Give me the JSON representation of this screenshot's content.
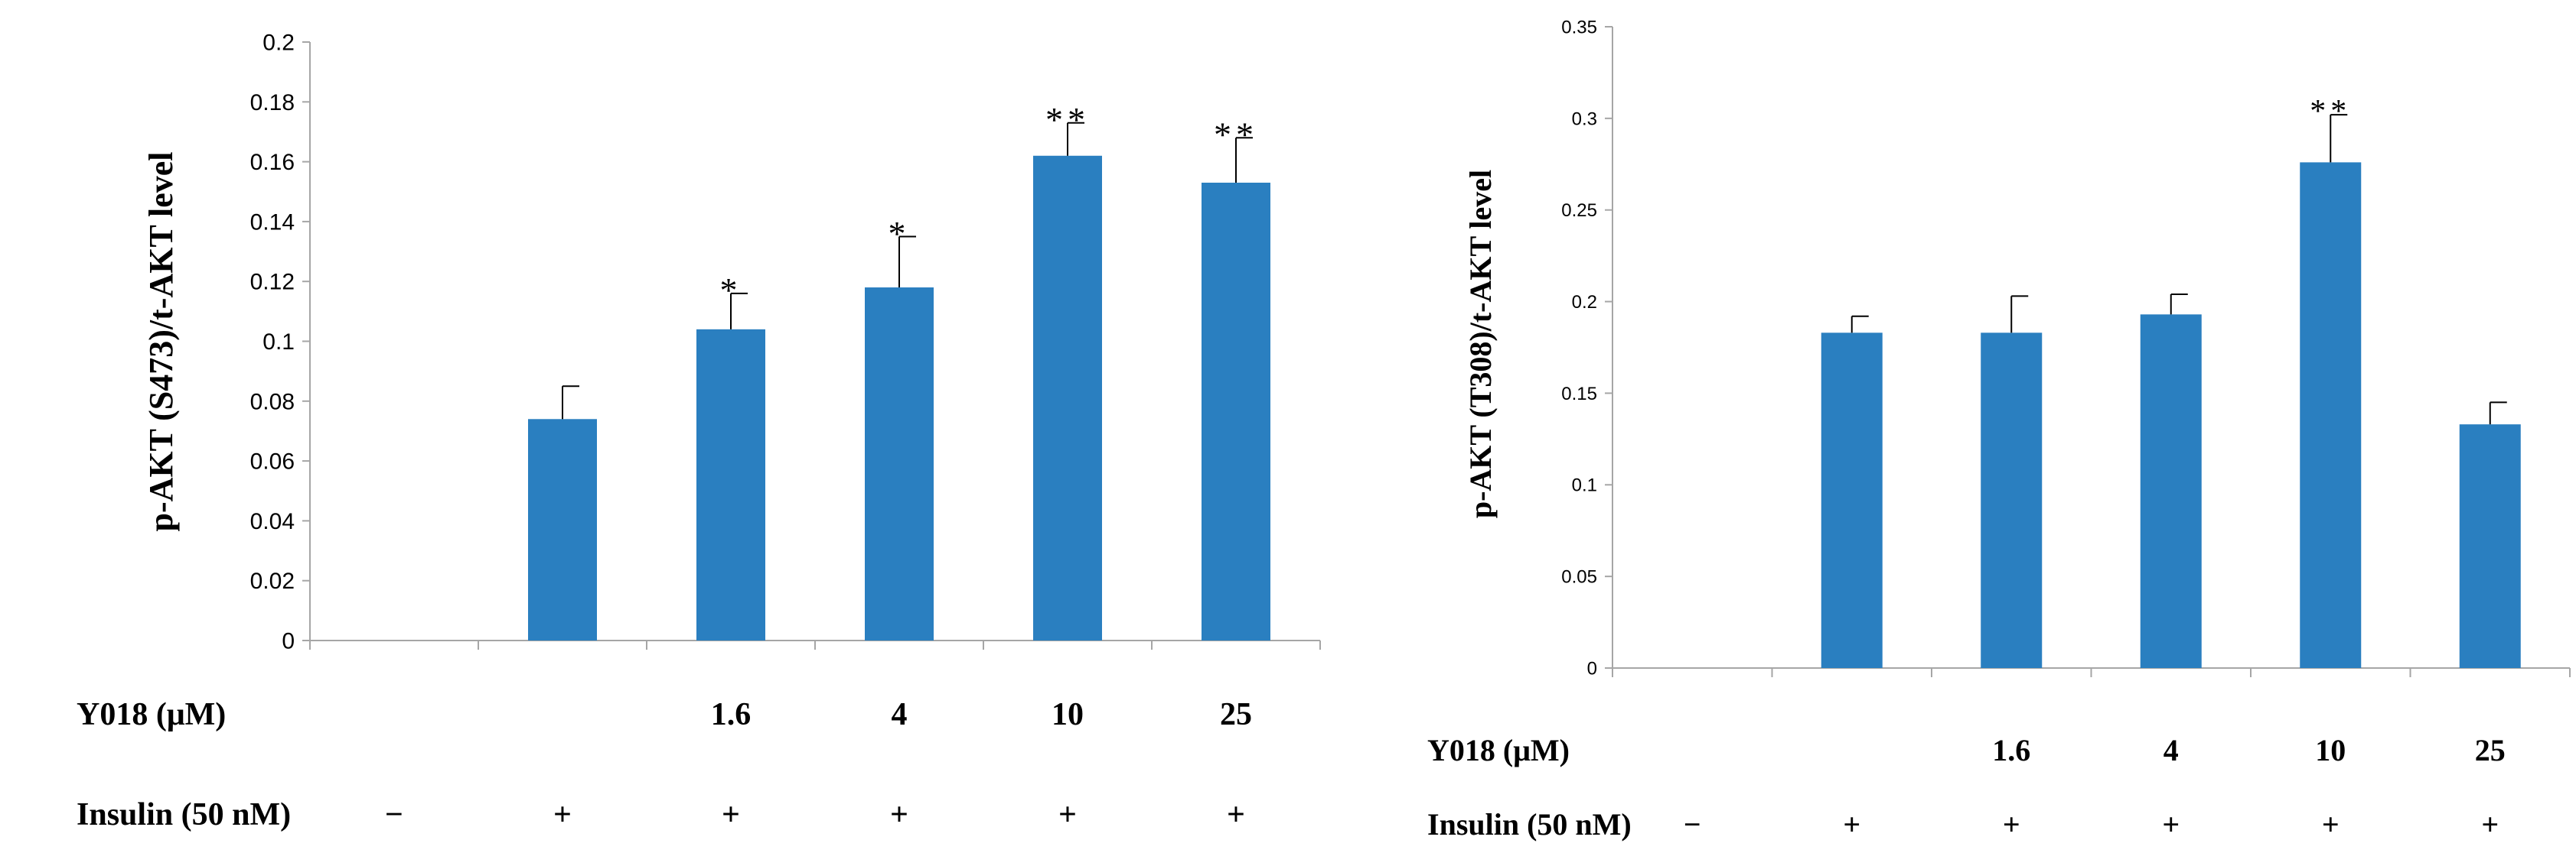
{
  "chart_data": [
    {
      "type": "bar",
      "ylabel": "p-AKT (S473)/t-AKT level",
      "ylim": [
        0,
        0.2
      ],
      "yticks": [
        "0",
        "0.02",
        "0.04",
        "0.06",
        "0.08",
        "0.1",
        "0.12",
        "0.14",
        "0.16",
        "0.18",
        "0.2"
      ],
      "yticks_values": [
        0,
        0.02,
        0.04,
        0.06,
        0.08,
        0.1,
        0.12,
        0.14,
        0.16,
        0.18,
        0.2
      ],
      "values": [
        0,
        0.074,
        0.104,
        0.118,
        0.162,
        0.153
      ],
      "errors": [
        0,
        0.011,
        0.012,
        0.017,
        0.011,
        0.015
      ],
      "significance": [
        "",
        "",
        "*",
        "*",
        "**",
        "**"
      ],
      "bar_color": "#2a7fc0",
      "rows": [
        {
          "label": "Y018 (μM)",
          "values": [
            "",
            "",
            "1.6",
            "4",
            "10",
            "25"
          ]
        },
        {
          "label": "Insulin (50 nM)",
          "values": [
            "−",
            "+",
            "+",
            "+",
            "+",
            "+"
          ]
        }
      ]
    },
    {
      "type": "bar",
      "ylabel": "p-AKT (T308)/t-AKT level",
      "ylim": [
        0,
        0.35
      ],
      "yticks": [
        "0",
        "0.05",
        "0.1",
        "0.15",
        "0.2",
        "0.25",
        "0.3",
        "0.35"
      ],
      "yticks_values": [
        0,
        0.05,
        0.1,
        0.15,
        0.2,
        0.25,
        0.3,
        0.35
      ],
      "values": [
        0,
        0.183,
        0.183,
        0.193,
        0.276,
        0.133
      ],
      "errors": [
        0,
        0.009,
        0.02,
        0.011,
        0.026,
        0.012
      ],
      "significance": [
        "",
        "",
        "",
        "",
        "**",
        ""
      ],
      "bar_color": "#2a7fc0",
      "rows": [
        {
          "label": "Y018 (μM)",
          "values": [
            "",
            "",
            "1.6",
            "4",
            "10",
            "25"
          ]
        },
        {
          "label": "Insulin (50 nM)",
          "values": [
            "−",
            "+",
            "+",
            "+",
            "+",
            "+"
          ]
        }
      ]
    }
  ]
}
